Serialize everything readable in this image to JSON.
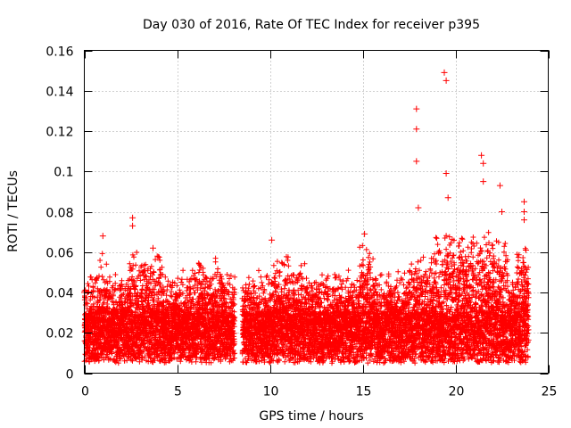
{
  "chart_data": {
    "type": "scatter",
    "title": "Day 030 of 2016, Rate Of TEC Index for receiver p395",
    "xlabel": "GPS time / hours",
    "ylabel": "ROTI / TECUs",
    "xlim": [
      0,
      25
    ],
    "ylim": [
      0,
      0.16
    ],
    "xticks": [
      0,
      5,
      10,
      15,
      20,
      25
    ],
    "xtick_labels": [
      "0",
      "5",
      "10",
      "15",
      "20",
      "25"
    ],
    "yticks": [
      0,
      0.02,
      0.04,
      0.06,
      0.08,
      0.1,
      0.12,
      0.14,
      0.16
    ],
    "ytick_labels": [
      "0",
      "0.02",
      "0.04",
      "0.06",
      "0.08",
      "0.1",
      "0.12",
      "0.14",
      "0.16"
    ],
    "grid": true,
    "marker": "+",
    "color": "#ff0000",
    "data_gaps_hours": [
      [
        8.1,
        8.5
      ],
      [
        23.95,
        25
      ]
    ],
    "notable_points": [
      {
        "x": 1.0,
        "y": 0.068
      },
      {
        "x": 2.6,
        "y": 0.077
      },
      {
        "x": 2.6,
        "y": 0.073
      },
      {
        "x": 3.7,
        "y": 0.062
      },
      {
        "x": 10.1,
        "y": 0.066
      },
      {
        "x": 15.1,
        "y": 0.069
      },
      {
        "x": 17.9,
        "y": 0.131
      },
      {
        "x": 17.9,
        "y": 0.121
      },
      {
        "x": 17.9,
        "y": 0.105
      },
      {
        "x": 18.0,
        "y": 0.082
      },
      {
        "x": 19.4,
        "y": 0.149
      },
      {
        "x": 19.5,
        "y": 0.145
      },
      {
        "x": 19.5,
        "y": 0.099
      },
      {
        "x": 19.6,
        "y": 0.087
      },
      {
        "x": 21.4,
        "y": 0.108
      },
      {
        "x": 21.5,
        "y": 0.104
      },
      {
        "x": 21.5,
        "y": 0.095
      },
      {
        "x": 22.4,
        "y": 0.093
      },
      {
        "x": 22.5,
        "y": 0.08
      },
      {
        "x": 23.7,
        "y": 0.085
      },
      {
        "x": 23.7,
        "y": 0.08
      },
      {
        "x": 23.7,
        "y": 0.076
      },
      {
        "x": 23.8,
        "y": 0.061
      },
      {
        "x": 0.0,
        "y": 0.04
      }
    ],
    "baseline_band": {
      "typical_min": 0.005,
      "typical_max": 0.03,
      "sample_interval_hours": 0.01
    }
  }
}
